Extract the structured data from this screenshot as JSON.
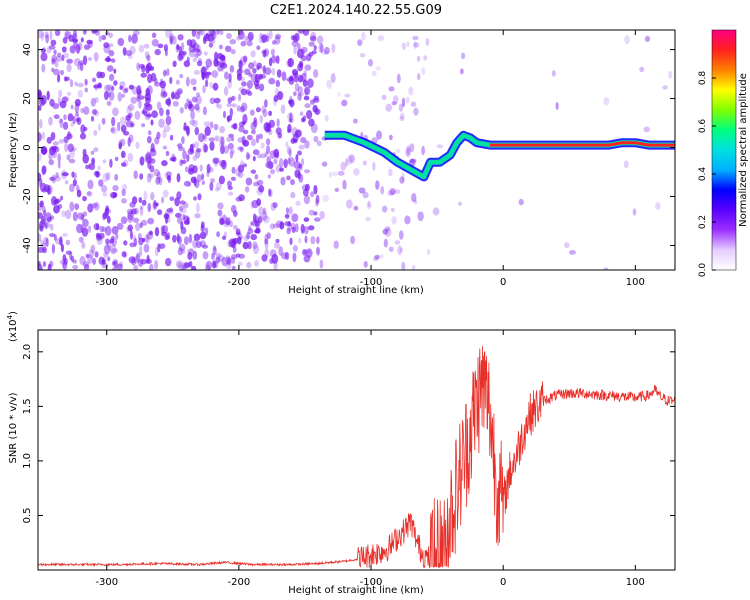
{
  "title": "C2E1.2024.140.22.55.G09",
  "colors": {
    "snr_line": "#e8302a",
    "scatter": "#7a1cf0",
    "colorbar_stops": [
      "#ffffff",
      "#e6ccff",
      "#9b30ff",
      "#5a00ff",
      "#0000ff",
      "#00b0ff",
      "#00e0e0",
      "#00ff80",
      "#80ff00",
      "#ffff00",
      "#ff8000",
      "#ff2020",
      "#ff0080"
    ]
  },
  "chart_data": [
    {
      "type": "heatmap",
      "xlabel": "Height of straight line (km)",
      "ylabel": "Frequency (Hz)",
      "xlim": [
        -352,
        130
      ],
      "ylim": [
        -50,
        48
      ],
      "xticks": [
        -300,
        -200,
        -100,
        0,
        100
      ],
      "yticks": [
        -40,
        -20,
        0,
        20,
        40
      ],
      "colorbar": {
        "label": "Normalized spectral amplitude",
        "lim": [
          0,
          1
        ],
        "ticks": [
          "0.0",
          "0.2",
          "0.4",
          "0.6",
          "0.8"
        ]
      },
      "trace": {
        "x": [
          -135,
          -120,
          -105,
          -90,
          -80,
          -70,
          -60,
          -55,
          -48,
          -40,
          -35,
          -30,
          -25,
          -20,
          -10,
          0,
          20,
          40,
          60,
          80,
          90,
          100,
          110,
          120,
          130
        ],
        "freq": [
          5,
          5,
          2,
          -2,
          -6,
          -9,
          -12,
          -6,
          -6,
          -3,
          2,
          5,
          4,
          2,
          1,
          1,
          1,
          1,
          1,
          1,
          2,
          2,
          1,
          1,
          1
        ]
      }
    },
    {
      "type": "line",
      "xlabel": "Height of straight line (km)",
      "ylabel": "SNR (10 * v/v)",
      "scale_label": "(x10",
      "scale_exp": "4",
      "scale_close": ")",
      "xlim": [
        -352,
        130
      ],
      "ylim": [
        0,
        2.2
      ],
      "xticks": [
        -300,
        -200,
        -100,
        0,
        100
      ],
      "yticks": [
        "0.5",
        "1.0",
        "1.5",
        "2.0"
      ],
      "series": [
        {
          "x": [
            -352,
            -320,
            -290,
            -260,
            -230,
            -210,
            -190,
            -160,
            -140,
            -120,
            -110,
            -100,
            -90,
            -85,
            -80,
            -75,
            -70,
            -65,
            -60,
            -55,
            -50,
            -45,
            -40,
            -35,
            -30,
            -25,
            -20,
            -15,
            -10,
            -5,
            0,
            5,
            10,
            15,
            20,
            30,
            40,
            50,
            60,
            80,
            100,
            110,
            115,
            118,
            120,
            125,
            130
          ],
          "y": [
            0.05,
            0.05,
            0.05,
            0.06,
            0.05,
            0.07,
            0.05,
            0.05,
            0.06,
            0.08,
            0.1,
            0.14,
            0.18,
            0.22,
            0.3,
            0.36,
            0.45,
            0.25,
            0.12,
            0.1,
            0.12,
            0.18,
            0.5,
            0.75,
            1.0,
            1.25,
            1.55,
            1.7,
            1.45,
            0.8,
            0.6,
            0.9,
            1.05,
            1.25,
            1.42,
            1.55,
            1.6,
            1.62,
            1.62,
            1.6,
            1.58,
            1.6,
            1.65,
            1.6,
            1.58,
            1.55,
            1.55
          ]
        }
      ]
    }
  ]
}
